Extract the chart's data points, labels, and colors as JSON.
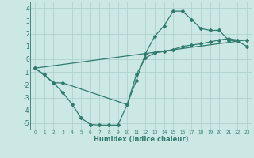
{
  "xlabel": "Humidex (Indice chaleur)",
  "xlim": [
    -0.5,
    23.5
  ],
  "ylim": [
    -5.5,
    4.5
  ],
  "xticks": [
    0,
    1,
    2,
    3,
    4,
    5,
    6,
    7,
    8,
    9,
    10,
    11,
    12,
    13,
    14,
    15,
    16,
    17,
    18,
    19,
    20,
    21,
    22,
    23
  ],
  "yticks": [
    -5,
    -4,
    -3,
    -2,
    -1,
    0,
    1,
    2,
    3,
    4
  ],
  "color": "#317a6e",
  "bg_color": "#cce8e5",
  "grid_color": "#aacfcc",
  "line1_x": [
    0,
    1,
    2,
    3,
    4,
    5,
    6,
    7,
    8,
    9,
    10,
    11,
    12,
    13,
    14,
    15,
    16,
    17,
    18,
    19,
    20,
    21,
    22,
    23
  ],
  "line1_y": [
    -0.7,
    -1.2,
    -1.85,
    -2.6,
    -3.5,
    -4.6,
    -5.1,
    -5.15,
    -5.15,
    -5.15,
    -3.55,
    -1.65,
    0.45,
    1.8,
    2.6,
    3.75,
    3.75,
    3.1,
    2.4,
    2.25,
    2.25,
    1.5,
    1.4,
    1.0
  ],
  "line2_x": [
    0,
    2,
    3,
    10,
    11,
    12,
    13,
    14,
    15,
    16,
    17,
    18,
    19,
    20,
    21,
    22,
    23
  ],
  "line2_y": [
    -0.7,
    -1.85,
    -1.85,
    -3.55,
    -1.2,
    0.1,
    0.5,
    0.6,
    0.75,
    1.0,
    1.1,
    1.2,
    1.35,
    1.5,
    1.6,
    1.5,
    1.5
  ],
  "line3_x": [
    0,
    23
  ],
  "line3_y": [
    -0.7,
    1.5
  ]
}
